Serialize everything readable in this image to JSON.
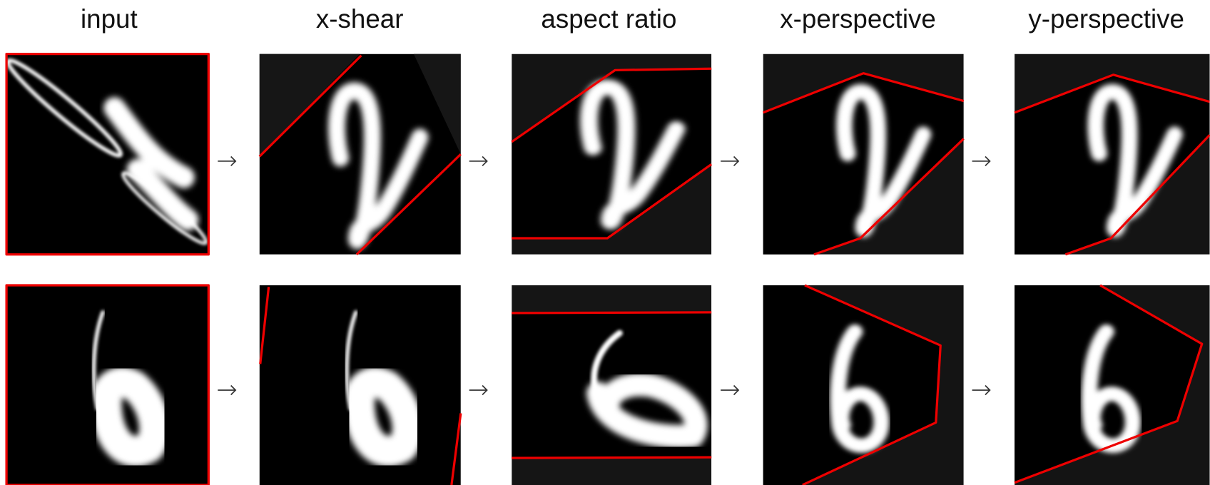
{
  "header": {
    "columns": [
      "input",
      "x-shear",
      "aspect ratio",
      "x-perspective",
      "y-perspective"
    ]
  }
}
